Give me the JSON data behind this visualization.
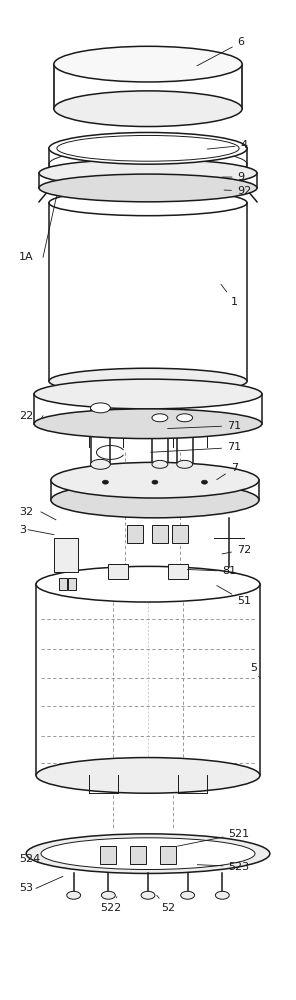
{
  "bg_color": "#ffffff",
  "lc": "#1a1a1a",
  "figsize": [
    2.96,
    10.0
  ],
  "dpi": 100,
  "lw_main": 1.1,
  "lw_thin": 0.7,
  "lw_dash": 0.6,
  "fc_light": "#f8f8f8",
  "fc_mid": "#eeeeee",
  "fc_dark": "#dddddd"
}
